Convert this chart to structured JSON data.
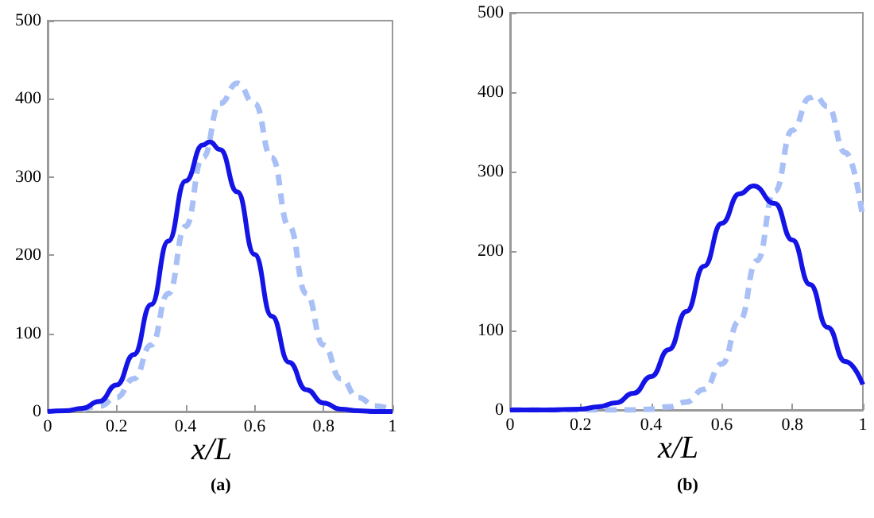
{
  "chart_data": [
    {
      "type": "line",
      "xlabel": "x/L",
      "annotations": [
        "(a)"
      ],
      "xlim": [
        0,
        1
      ],
      "xticks": [
        0,
        0.2,
        0.4,
        0.6,
        0.8,
        1
      ],
      "ylim": [
        0,
        500
      ],
      "yticks": [
        0,
        100,
        200,
        300,
        400,
        500
      ],
      "marker": "none",
      "series": [
        {
          "color": "#1414e6",
          "line_style": "solid",
          "x": [
            0,
            0.05,
            0.1,
            0.15,
            0.2,
            0.25,
            0.3,
            0.35,
            0.4,
            0.45,
            0.47,
            0.5,
            0.55,
            0.6,
            0.65,
            0.7,
            0.75,
            0.8,
            0.85,
            0.9,
            0.95,
            1
          ],
          "values": [
            0,
            1,
            4,
            13,
            34,
            73,
            137,
            218,
            295,
            341,
            345,
            335,
            281,
            201,
            122,
            63,
            28,
            11,
            3,
            1,
            0,
            0
          ]
        },
        {
          "color": "#a9c0f7",
          "line_style": "dashed",
          "x": [
            0.1,
            0.15,
            0.2,
            0.25,
            0.3,
            0.35,
            0.4,
            0.45,
            0.5,
            0.55,
            0.6,
            0.65,
            0.7,
            0.75,
            0.8,
            0.85,
            0.9,
            0.95,
            1
          ],
          "values": [
            2,
            7,
            18,
            42,
            85,
            151,
            237,
            325,
            394,
            420,
            394,
            325,
            237,
            151,
            85,
            42,
            18,
            7,
            2
          ]
        }
      ]
    },
    {
      "type": "line",
      "xlabel": "x/L",
      "annotations": [
        "(b)"
      ],
      "xlim": [
        0,
        1
      ],
      "xticks": [
        0,
        0.2,
        0.4,
        0.6,
        0.8,
        1
      ],
      "ylim": [
        0,
        500
      ],
      "yticks": [
        0,
        100,
        200,
        300,
        400,
        500
      ],
      "marker": "none",
      "series": [
        {
          "color": "#1414e6",
          "line_style": "solid",
          "x": [
            0,
            0.1,
            0.2,
            0.25,
            0.3,
            0.35,
            0.4,
            0.45,
            0.5,
            0.55,
            0.6,
            0.65,
            0.69,
            0.75,
            0.8,
            0.85,
            0.9,
            0.95,
            1
          ],
          "values": [
            0,
            0,
            1,
            4,
            9,
            21,
            42,
            76,
            124,
            181,
            235,
            272,
            282,
            260,
            214,
            158,
            104,
            61,
            32
          ]
        },
        {
          "color": "#a9c0f7",
          "line_style": "dashed",
          "x": [
            0,
            0.1,
            0.2,
            0.3,
            0.35,
            0.4,
            0.45,
            0.5,
            0.55,
            0.6,
            0.65,
            0.7,
            0.75,
            0.8,
            0.85,
            0.865,
            0.9,
            0.95,
            1
          ],
          "values": [
            0,
            0,
            0,
            0,
            0,
            1,
            4,
            10,
            26,
            58,
            112,
            188,
            275,
            352,
            393,
            395,
            382,
            324,
            240
          ]
        }
      ]
    }
  ]
}
